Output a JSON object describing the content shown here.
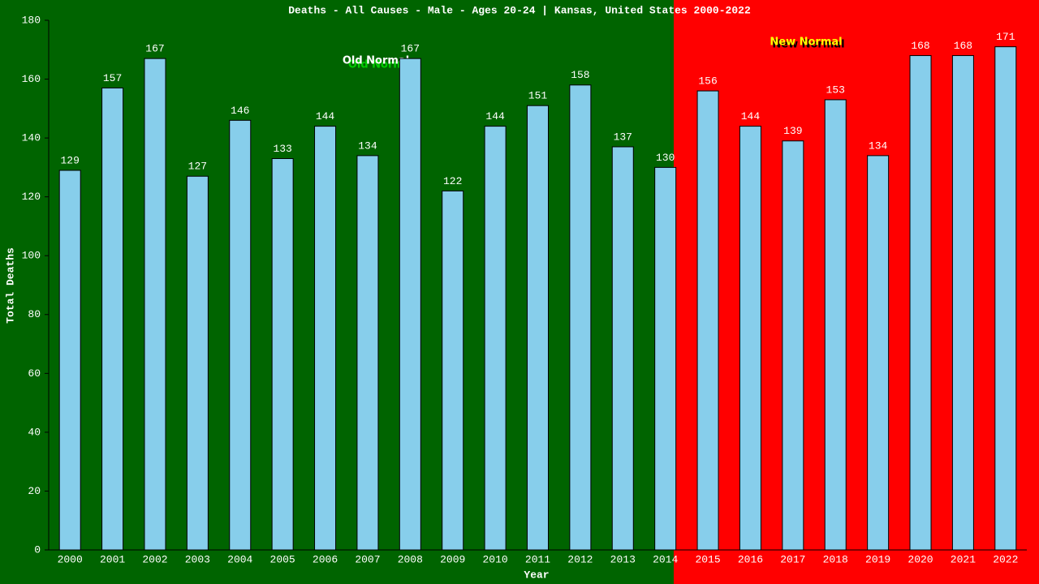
{
  "chart_data": {
    "type": "bar",
    "title": "Deaths - All Causes - Male - Ages 20-24 | Kansas, United States 2000-2022",
    "x_label": "Year",
    "y_label": "Total Deaths",
    "annotations": [
      "Old Normal",
      "New Normal"
    ],
    "categories": [
      "2000",
      "2001",
      "2002",
      "2003",
      "2004",
      "2005",
      "2006",
      "2007",
      "2008",
      "2009",
      "2010",
      "2011",
      "2012",
      "2013",
      "2014",
      "2015",
      "2016",
      "2017",
      "2018",
      "2019",
      "2020",
      "2021",
      "2022"
    ],
    "values": [
      129,
      157,
      167,
      127,
      146,
      133,
      144,
      134,
      167,
      122,
      144,
      151,
      158,
      137,
      130,
      156,
      144,
      139,
      153,
      134,
      168,
      168,
      171
    ],
    "color": "#87ceeb",
    "ylim": [
      0,
      180
    ],
    "yticks": [
      0,
      20,
      40,
      60,
      80,
      100,
      120,
      140,
      160,
      180
    ]
  }
}
